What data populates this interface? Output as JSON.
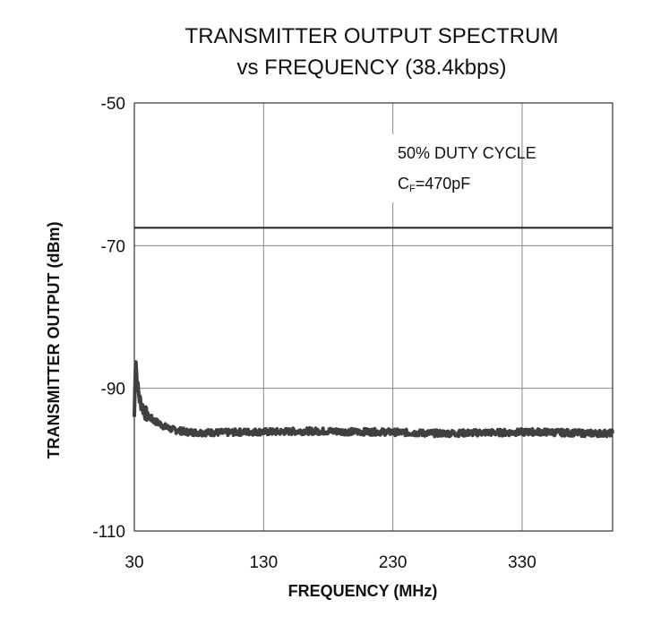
{
  "chart_data": {
    "type": "line",
    "title_line1": "TRANSMITTER OUTPUT SPECTRUM",
    "title_line2": "vs FREQUENCY (38.4kbps)",
    "xlabel": "FREQUENCY (MHz)",
    "ylabel": "TRANSMITTER OUTPUT (dBm)",
    "xlim": [
      30,
      400
    ],
    "ylim": [
      -110,
      -50
    ],
    "x_ticks": [
      30,
      130,
      230,
      330
    ],
    "y_ticks": [
      -50,
      -70,
      -90,
      -110
    ],
    "grid": true,
    "annotation": {
      "line1": "50% DUTY CYCLE",
      "line2_prefix": "C",
      "line2_sub": "F",
      "line2_suffix": "=470pF"
    },
    "reference_line": {
      "y": -67.5
    },
    "series": [
      {
        "x": [
          30,
          31,
          32,
          34,
          36,
          38,
          40,
          45,
          50,
          55,
          60,
          70,
          80,
          90,
          100,
          120,
          140,
          160,
          180,
          200,
          220,
          240,
          260,
          280,
          300,
          320,
          340,
          360,
          380,
          400
        ],
        "values": [
          -94,
          -85,
          -89,
          -91.5,
          -92.5,
          -93.3,
          -93.8,
          -94.5,
          -95,
          -95.5,
          -95.8,
          -96.1,
          -96.2,
          -96.2,
          -96.2,
          -96.1,
          -96.1,
          -96.0,
          -96.0,
          -96.1,
          -96.1,
          -96.2,
          -96.3,
          -96.3,
          -96.2,
          -96.2,
          -96.1,
          -96.2,
          -96.3,
          -96.3
        ],
        "noise_dB": 0.45
      }
    ],
    "line_color": "#404040",
    "ref_line_color": "#222222",
    "grid_color": "#888888"
  }
}
